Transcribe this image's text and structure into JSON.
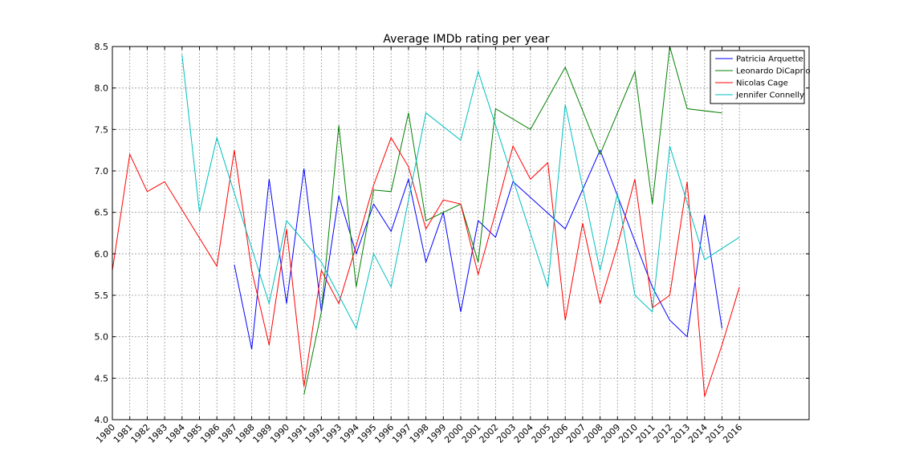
{
  "chart_data": {
    "type": "line",
    "title": "Average IMDb rating per year",
    "xlabel": "",
    "ylabel": "",
    "xlim": [
      1980,
      2020
    ],
    "ylim": [
      4.0,
      8.5
    ],
    "x_ticks": [
      "1980",
      "1981",
      "1982",
      "1983",
      "1984",
      "1985",
      "1986",
      "1987",
      "1988",
      "1989",
      "1990",
      "1991",
      "1992",
      "1993",
      "1994",
      "1995",
      "1996",
      "1997",
      "1998",
      "1999",
      "2000",
      "2001",
      "2002",
      "2003",
      "2004",
      "2005",
      "2006",
      "2007",
      "2008",
      "2009",
      "2010",
      "2011",
      "2012",
      "2013",
      "2014",
      "2015",
      "2016"
    ],
    "y_ticks": [
      "4.0",
      "4.5",
      "5.0",
      "5.5",
      "6.0",
      "6.5",
      "7.0",
      "7.5",
      "8.0",
      "8.5"
    ],
    "grid": true,
    "legend_position": "top-right",
    "series": [
      {
        "name": "Patricia Arquette",
        "color": "#0000ff",
        "x": [
          1987,
          1988,
          1989,
          1990,
          1991,
          1992,
          1993,
          1994,
          1995,
          1996,
          1997,
          1998,
          1999,
          2000,
          2001,
          2002,
          2003,
          2006,
          2008,
          2011,
          2012,
          2013,
          2014,
          2015
        ],
        "y": [
          5.87,
          4.85,
          6.9,
          5.4,
          7.03,
          5.3,
          6.7,
          6.0,
          6.6,
          6.27,
          6.9,
          5.9,
          6.5,
          5.3,
          6.4,
          6.2,
          6.87,
          6.3,
          7.25,
          5.6,
          5.2,
          5.0,
          6.47,
          5.1
        ]
      },
      {
        "name": "Leonardo DiCaprio",
        "color": "#008000",
        "x": [
          1991,
          1992,
          1993,
          1994,
          1995,
          1996,
          1997,
          1998,
          1999,
          2000,
          2001,
          2002,
          2004,
          2006,
          2008,
          2010,
          2011,
          2012,
          2013,
          2015
        ],
        "y": [
          4.3,
          5.3,
          7.55,
          5.6,
          6.77,
          6.75,
          7.7,
          6.4,
          6.5,
          6.6,
          5.9,
          7.75,
          7.5,
          8.25,
          7.2,
          8.2,
          6.6,
          8.5,
          7.75,
          7.7
        ]
      },
      {
        "name": "Nicolas Cage",
        "color": "#ff0000",
        "x": [
          1980,
          1981,
          1982,
          1983,
          1986,
          1987,
          1988,
          1989,
          1990,
          1991,
          1992,
          1993,
          1994,
          1995,
          1996,
          1997,
          1998,
          1999,
          2000,
          2001,
          2002,
          2003,
          2004,
          2005,
          2006,
          2007,
          2008,
          2009,
          2010,
          2011,
          2012,
          2013,
          2014,
          2015,
          2016
        ],
        "y": [
          5.8,
          7.2,
          6.75,
          6.87,
          5.85,
          7.25,
          5.8,
          4.9,
          6.3,
          4.4,
          5.8,
          5.4,
          6.1,
          6.83,
          7.4,
          7.05,
          6.3,
          6.65,
          6.6,
          5.75,
          6.5,
          7.3,
          6.9,
          7.1,
          5.2,
          6.37,
          5.4,
          6.1,
          6.9,
          5.35,
          5.5,
          6.87,
          4.28,
          4.9,
          5.6
        ]
      },
      {
        "name": "Jennifer Connelly",
        "color": "#00bfbf",
        "x": [
          1984,
          1985,
          1986,
          1989,
          1990,
          1992,
          1994,
          1995,
          1996,
          1998,
          2000,
          2001,
          2005,
          2006,
          2008,
          2009,
          2010,
          2011,
          2012,
          2014,
          2016
        ],
        "y": [
          8.4,
          6.5,
          7.4,
          5.4,
          6.4,
          5.9,
          5.1,
          6.0,
          5.6,
          7.7,
          7.37,
          8.2,
          5.6,
          7.8,
          5.8,
          6.73,
          5.5,
          5.3,
          7.3,
          5.93,
          6.2
        ]
      }
    ]
  }
}
